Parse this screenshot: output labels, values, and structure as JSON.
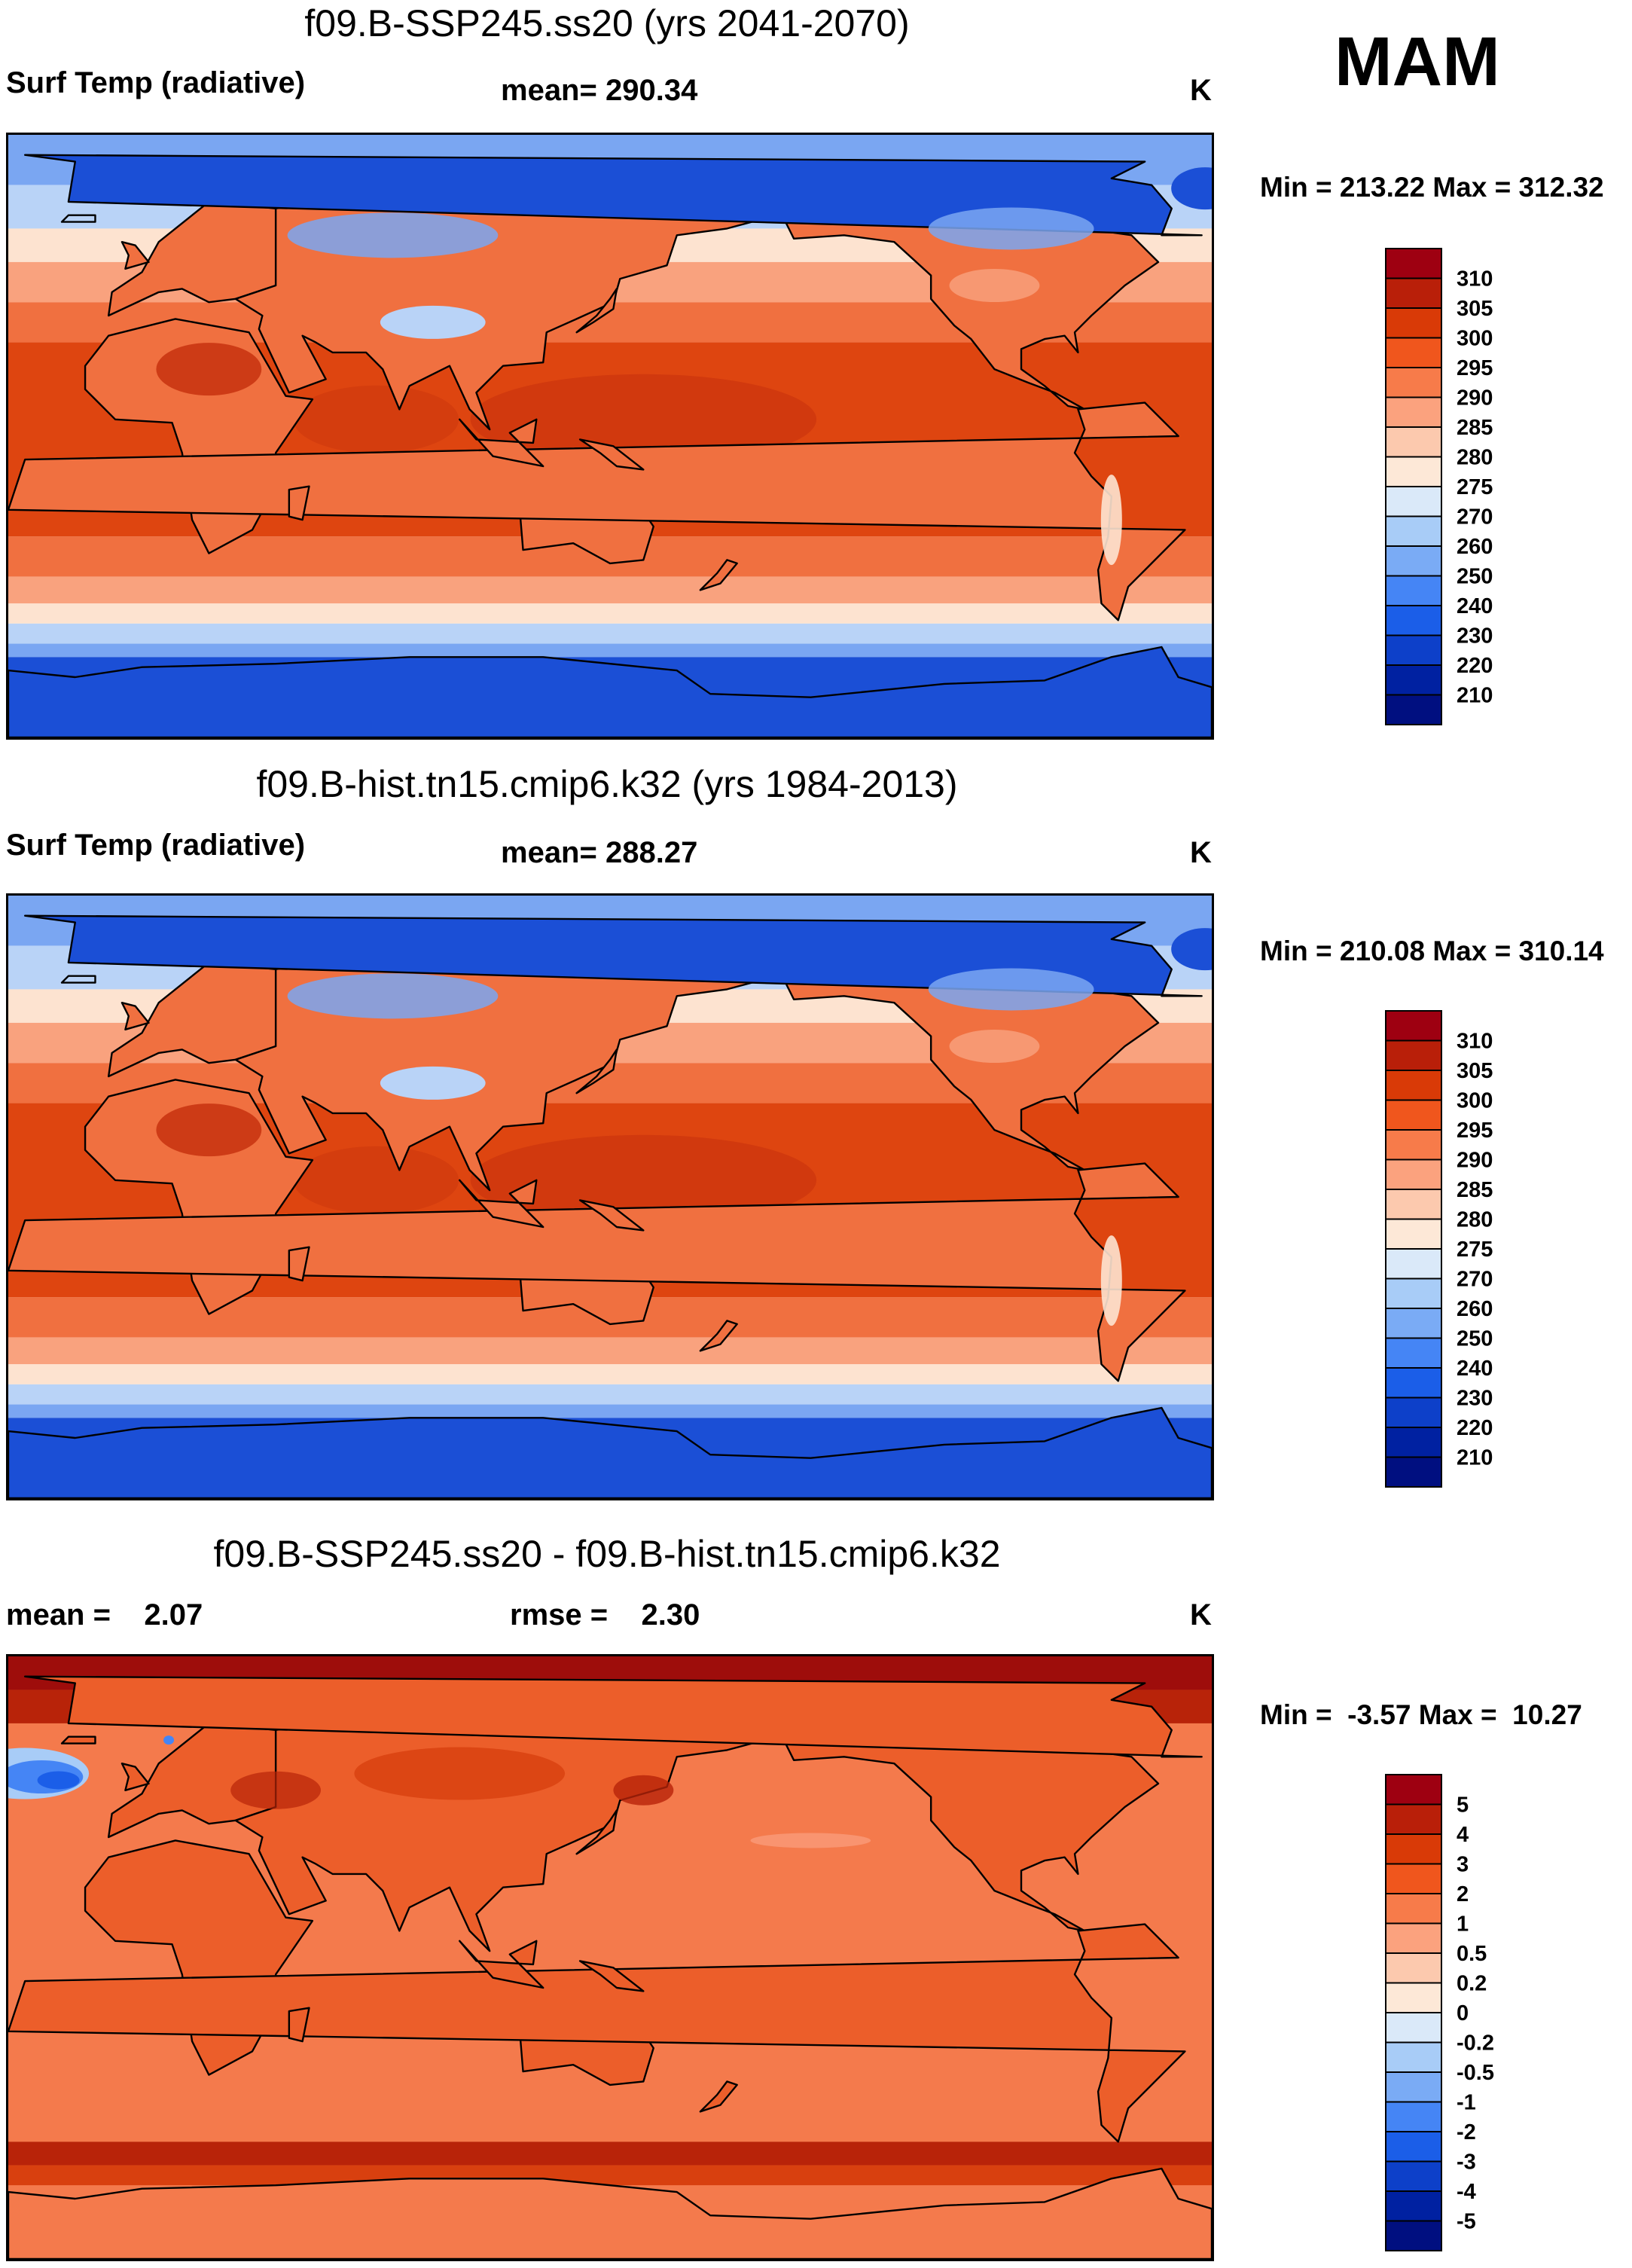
{
  "season": "MAM",
  "panels": [
    {
      "title": "f09.B-SSP245.ss20 (yrs 2041-2070)",
      "left_label": "Surf Temp (radiative)",
      "center_label": "mean= 290.34",
      "units": "K",
      "minmax": "Min = 213.22 Max = 312.32",
      "scale_colors": [
        "#9e0011",
        "#b91f09",
        "#d93a07",
        "#f0561d",
        "#f77b4a",
        "#fba27e",
        "#fcc9ae",
        "#fde8d7",
        "#dae9f9",
        "#a8ccf7",
        "#7aabf5",
        "#4585f5",
        "#1b5ee8",
        "#0d40c9",
        "#0021a1",
        "#000f80"
      ],
      "scale_labels": [
        "310",
        "305",
        "300",
        "295",
        "290",
        "285",
        "280",
        "275",
        "270",
        "260",
        "250",
        "240",
        "230",
        "220",
        "210"
      ],
      "map_palette": {
        "polar": "#1b4fd6",
        "cold": "#7aa6f2",
        "cool": "#b9d3f7",
        "mild": "#fde3d0",
        "warm": "#f9a27e",
        "hot": "#f07040",
        "tropic": "#de4510",
        "land_dark": "#c42e0b"
      },
      "map_kind": "absolute"
    },
    {
      "title": "f09.B-hist.tn15.cmip6.k32 (yrs 1984-2013)",
      "left_label": "Surf Temp (radiative)",
      "center_label": "mean= 288.27",
      "units": "K",
      "minmax": "Min = 210.08 Max = 310.14",
      "scale_colors": [
        "#9e0011",
        "#b91f09",
        "#d93a07",
        "#f0561d",
        "#f77b4a",
        "#fba27e",
        "#fcc9ae",
        "#fde8d7",
        "#dae9f9",
        "#a8ccf7",
        "#7aabf5",
        "#4585f5",
        "#1b5ee8",
        "#0d40c9",
        "#0021a1",
        "#000f80"
      ],
      "scale_labels": [
        "310",
        "305",
        "300",
        "295",
        "290",
        "285",
        "280",
        "275",
        "270",
        "260",
        "250",
        "240",
        "230",
        "220",
        "210"
      ],
      "map_palette": {
        "polar": "#1b4fd6",
        "cold": "#7aa6f2",
        "cool": "#b9d3f7",
        "mild": "#fde3d0",
        "warm": "#f9a27e",
        "hot": "#f07040",
        "tropic": "#de4510",
        "land_dark": "#c42e0b"
      },
      "map_kind": "absolute"
    },
    {
      "title": "f09.B-SSP245.ss20 - f09.B-hist.tn15.cmip6.k32",
      "left_label": "mean =    2.07",
      "center_label": "rmse =    2.30",
      "units": "K",
      "minmax": "Min =  -3.57 Max =  10.27",
      "scale_colors": [
        "#9e0011",
        "#b91f09",
        "#d93a07",
        "#f0561d",
        "#f77b4a",
        "#fba27e",
        "#fcc9ae",
        "#fde8d7",
        "#dae9f9",
        "#a8ccf7",
        "#7aabf5",
        "#4585f5",
        "#1b5ee8",
        "#0d40c9",
        "#0021a1",
        "#000f80"
      ],
      "scale_labels": [
        "5",
        "4",
        "3",
        "2",
        "1",
        "0.5",
        "0.2",
        "0",
        "-0.2",
        "-0.5",
        "-1",
        "-2",
        "-3",
        "-4",
        "-5"
      ],
      "map_palette": {
        "base": "#f47a4c",
        "warm": "#ec5e2a",
        "hot": "#d8400f",
        "hotter": "#b82309",
        "arctic": "#9e0d0b",
        "cool_patch": "#fba588",
        "neg1": "#a8ccf7",
        "neg2": "#4585f5",
        "neg3": "#1b5ee8"
      },
      "map_kind": "difference"
    }
  ]
}
